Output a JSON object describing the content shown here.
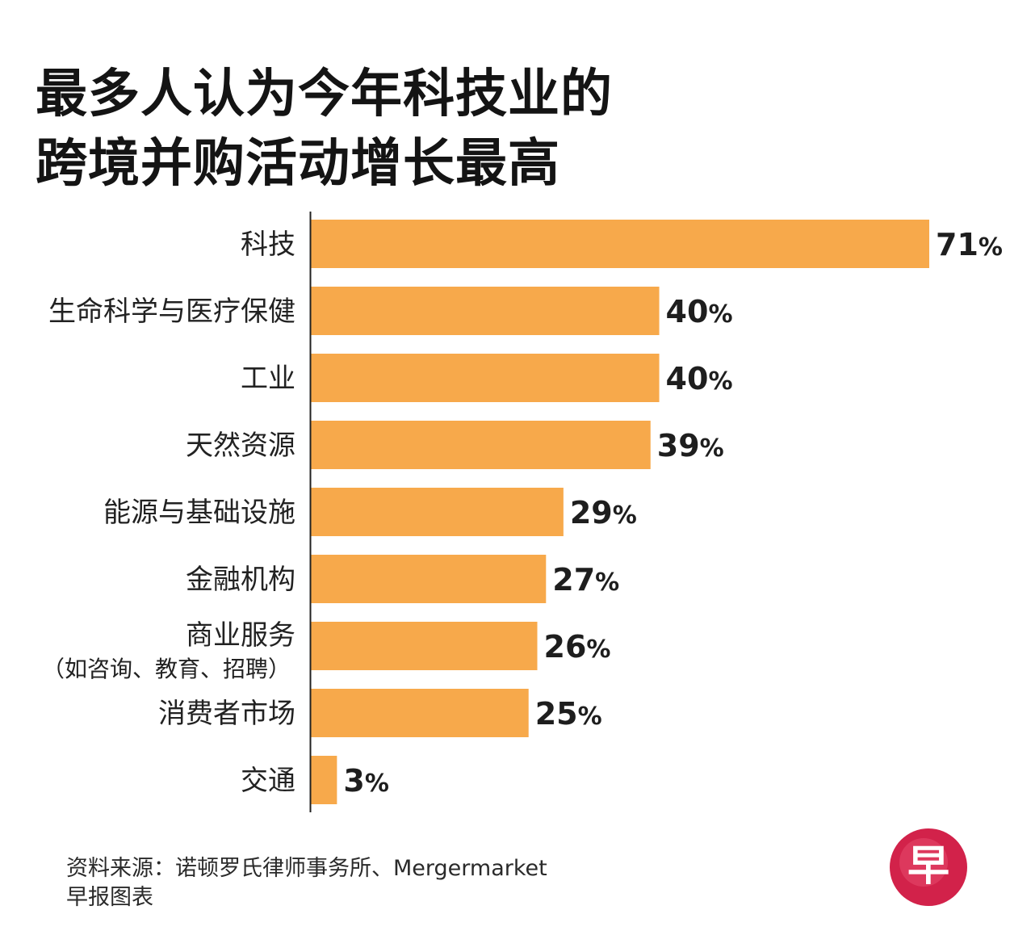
{
  "title": {
    "line1": "最多人认为今年科技业的",
    "line2": "跨境并购活动增长最高"
  },
  "chart_data": {
    "type": "bar",
    "orientation": "horizontal",
    "categories": [
      [
        "科技"
      ],
      [
        "生命科学与医疗保健"
      ],
      [
        "工业"
      ],
      [
        "天然资源"
      ],
      [
        "能源与基础设施"
      ],
      [
        "金融机构"
      ],
      [
        "商业服务",
        "（如咨询、教育、招聘）"
      ],
      [
        "消费者市场"
      ],
      [
        "交通"
      ]
    ],
    "values": [
      71,
      40,
      40,
      39,
      29,
      27,
      26,
      25,
      3
    ],
    "value_suffix": "%",
    "bar_color": "#F7A94B",
    "axis_color": "#222222",
    "grid": false
  },
  "source": {
    "line1": "资料来源：诺顿罗氏律师事务所、Mergermarket",
    "line2": "早报图表"
  },
  "logo": {
    "glyph": "早",
    "color_outer": "#D2224A",
    "color_inner": "#E64A6E",
    "icon": "zaobao-logo"
  }
}
